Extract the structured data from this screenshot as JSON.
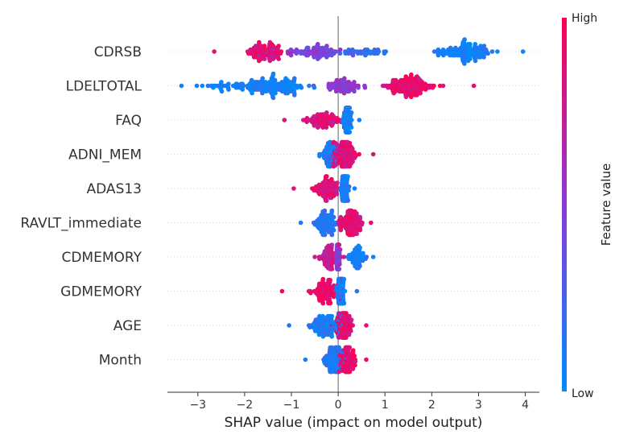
{
  "chart_data": {
    "type": "scatter",
    "subtype": "shap-beeswarm",
    "title": "",
    "xlabel": "SHAP value (impact on model output)",
    "ylabel": "",
    "xlim": [
      -3.65,
      4.3
    ],
    "x_ticks": [
      -3,
      -2,
      -1,
      0,
      1,
      2,
      3,
      4
    ],
    "zero_line": 0,
    "grid": false,
    "colorbar": {
      "label": "Feature value",
      "high_label": "High",
      "low_label": "Low",
      "high_color": "#ff0052",
      "mid_color": "#8a3ad8",
      "low_color": "#008bfb"
    },
    "features": [
      {
        "name": "CDRSB",
        "min": -2.65,
        "max": 3.95,
        "clusters": [
          {
            "center": -1.55,
            "spread": 0.35,
            "n": 110,
            "value": 0.85
          },
          {
            "center": -0.5,
            "spread": 0.6,
            "n": 90,
            "value": 0.45
          },
          {
            "center": 0.6,
            "spread": 0.5,
            "n": 40,
            "value": 0.2
          },
          {
            "center": 2.75,
            "spread": 0.45,
            "n": 150,
            "value": 0.05
          }
        ]
      },
      {
        "name": "LDELTOTAL",
        "min": -3.35,
        "max": 2.9,
        "clusters": [
          {
            "center": -1.4,
            "spread": 0.6,
            "n": 170,
            "value": 0.05
          },
          {
            "center": -2.4,
            "spread": 0.5,
            "n": 40,
            "value": 0.1
          },
          {
            "center": 0.1,
            "spread": 0.4,
            "n": 80,
            "value": 0.5
          },
          {
            "center": 1.5,
            "spread": 0.45,
            "n": 160,
            "value": 0.9
          }
        ]
      },
      {
        "name": "FAQ",
        "min": -1.15,
        "max": 0.45,
        "clusters": [
          {
            "center": -0.35,
            "spread": 0.3,
            "n": 90,
            "value": 0.85
          },
          {
            "center": 0.2,
            "spread": 0.07,
            "n": 120,
            "value": 0.05
          }
        ]
      },
      {
        "name": "ADNI_MEM",
        "min": -0.4,
        "max": 0.75,
        "clusters": [
          {
            "center": -0.2,
            "spread": 0.15,
            "n": 80,
            "value": 0.1
          },
          {
            "center": 0.15,
            "spread": 0.22,
            "n": 150,
            "value": 0.85
          }
        ]
      },
      {
        "name": "ADAS13",
        "min": -0.95,
        "max": 0.35,
        "clusters": [
          {
            "center": -0.25,
            "spread": 0.25,
            "n": 110,
            "value": 0.85
          },
          {
            "center": 0.15,
            "spread": 0.08,
            "n": 90,
            "value": 0.08
          }
        ]
      },
      {
        "name": "RAVLT_immediate",
        "min": -0.8,
        "max": 0.7,
        "clusters": [
          {
            "center": -0.25,
            "spread": 0.22,
            "n": 110,
            "value": 0.1
          },
          {
            "center": 0.25,
            "spread": 0.2,
            "n": 130,
            "value": 0.88
          }
        ]
      },
      {
        "name": "CDMEMORY",
        "min": -0.5,
        "max": 0.75,
        "clusters": [
          {
            "center": -0.2,
            "spread": 0.15,
            "n": 80,
            "value": 0.75
          },
          {
            "center": 0.0,
            "spread": 0.03,
            "n": 120,
            "value": 0.5
          },
          {
            "center": 0.4,
            "spread": 0.15,
            "n": 70,
            "value": 0.05
          }
        ]
      },
      {
        "name": "GDMEMORY",
        "min": -1.2,
        "max": 0.4,
        "clusters": [
          {
            "center": -0.3,
            "spread": 0.25,
            "n": 110,
            "value": 0.95
          },
          {
            "center": 0.05,
            "spread": 0.07,
            "n": 140,
            "value": 0.08
          }
        ]
      },
      {
        "name": "AGE",
        "min": -1.05,
        "max": 0.6,
        "clusters": [
          {
            "center": -0.25,
            "spread": 0.3,
            "n": 130,
            "value": 0.1
          },
          {
            "center": 0.12,
            "spread": 0.15,
            "n": 120,
            "value": 0.88
          }
        ]
      },
      {
        "name": "Month",
        "min": -0.7,
        "max": 0.6,
        "clusters": [
          {
            "center": -0.1,
            "spread": 0.18,
            "n": 130,
            "value": 0.1
          },
          {
            "center": 0.2,
            "spread": 0.15,
            "n": 120,
            "value": 0.9
          }
        ]
      }
    ]
  }
}
